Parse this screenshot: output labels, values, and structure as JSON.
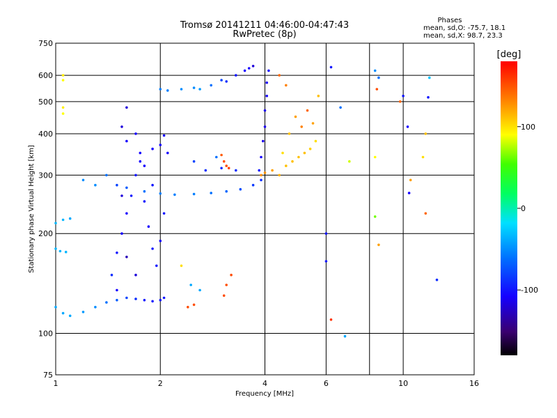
{
  "chart_data": {
    "type": "scatter",
    "title": "Tromsø 20141211 04:46:00-04:47:43",
    "subtitle": "RwPretec (8p)",
    "xlabel": "Frequency [MHz]",
    "ylabel": "Stationary phase Virtual Height [km]",
    "x_scale": "log",
    "y_scale": "log",
    "xlim": [
      1,
      16
    ],
    "ylim": [
      75,
      750
    ],
    "x_ticks": [
      1,
      2,
      4,
      6,
      10,
      16
    ],
    "x_tick_labels": [
      "1",
      "2",
      "4",
      "6",
      "10",
      "16"
    ],
    "x_grid": [
      2,
      4,
      6,
      8,
      10
    ],
    "y_ticks": [
      75,
      100,
      200,
      300,
      400,
      500,
      600,
      750
    ],
    "y_tick_labels": [
      "75",
      "100",
      "200",
      "300",
      "400",
      "500",
      "600",
      "750"
    ],
    "y_grid": [
      100,
      200,
      300,
      400,
      500,
      600
    ],
    "grid": true,
    "stats": {
      "heading": "Phases",
      "line1": "mean, sd,O: -75.7, 18.1",
      "line2": "mean, sd,X:  98.7, 23.3"
    },
    "colorbar": {
      "label": "[deg]",
      "range": [
        -180,
        180
      ],
      "ticks": [
        100,
        0,
        -100
      ],
      "tick_labels": [
        "100",
        "0",
        "-100"
      ],
      "colormap": "rainbow"
    },
    "series": [
      {
        "points": [
          [
            1.0,
            120,
            -40
          ],
          [
            1.05,
            115,
            -40
          ],
          [
            1.1,
            113,
            -40
          ],
          [
            1.2,
            116,
            -45
          ],
          [
            1.3,
            120,
            -50
          ],
          [
            1.4,
            124,
            -60
          ],
          [
            1.5,
            126,
            -70
          ],
          [
            1.6,
            128,
            -80
          ],
          [
            1.7,
            127,
            -90
          ],
          [
            1.8,
            126,
            -100
          ],
          [
            1.9,
            125,
            -100
          ],
          [
            2.0,
            126,
            -100
          ],
          [
            2.05,
            128,
            -100
          ],
          [
            1.0,
            180,
            -35
          ],
          [
            1.03,
            177,
            -35
          ],
          [
            1.07,
            176,
            -35
          ],
          [
            1.0,
            215,
            -35
          ],
          [
            1.05,
            220,
            -35
          ],
          [
            1.1,
            222,
            -40
          ],
          [
            1.45,
            150,
            -90
          ],
          [
            1.5,
            175,
            -100
          ],
          [
            1.55,
            200,
            -110
          ],
          [
            1.6,
            230,
            -110
          ],
          [
            1.65,
            260,
            -100
          ],
          [
            1.7,
            300,
            -100
          ],
          [
            1.75,
            350,
            -110
          ],
          [
            1.8,
            250,
            -100
          ],
          [
            1.85,
            210,
            -110
          ],
          [
            1.9,
            180,
            -100
          ],
          [
            1.95,
            160,
            -100
          ],
          [
            2.0,
            190,
            -110
          ],
          [
            2.05,
            230,
            -100
          ],
          [
            1.6,
            170,
            -130
          ],
          [
            1.7,
            150,
            -120
          ],
          [
            1.5,
            135,
            -110
          ],
          [
            1.55,
            260,
            -120
          ],
          [
            1.8,
            320,
            -110
          ],
          [
            1.9,
            280,
            -100
          ],
          [
            1.55,
            420,
            -120
          ],
          [
            1.6,
            480,
            -120
          ],
          [
            1.6,
            380,
            -110
          ],
          [
            1.7,
            400,
            -110
          ],
          [
            1.75,
            330,
            -110
          ],
          [
            1.9,
            360,
            -110
          ],
          [
            2.0,
            370,
            -110
          ],
          [
            2.1,
            350,
            -110
          ],
          [
            2.05,
            395,
            -110
          ],
          [
            1.5,
            280,
            -80
          ],
          [
            1.6,
            275,
            -70
          ],
          [
            1.8,
            268,
            -60
          ],
          [
            2.0,
            264,
            -55
          ],
          [
            2.2,
            262,
            -55
          ],
          [
            2.5,
            263,
            -55
          ],
          [
            2.8,
            265,
            -60
          ],
          [
            3.1,
            268,
            -65
          ],
          [
            3.4,
            272,
            -75
          ],
          [
            3.7,
            280,
            -85
          ],
          [
            3.9,
            290,
            -90
          ],
          [
            2.0,
            545,
            -55
          ],
          [
            2.1,
            540,
            -55
          ],
          [
            2.3,
            545,
            -50
          ],
          [
            2.5,
            550,
            -50
          ],
          [
            2.6,
            545,
            -45
          ],
          [
            2.8,
            560,
            -60
          ],
          [
            3.0,
            580,
            -80
          ],
          [
            3.1,
            575,
            -90
          ],
          [
            3.3,
            600,
            -100
          ],
          [
            3.5,
            620,
            -110
          ],
          [
            3.7,
            640,
            -120
          ],
          [
            3.6,
            630,
            -110
          ],
          [
            3.9,
            340,
            -110
          ],
          [
            3.95,
            380,
            -115
          ],
          [
            4.0,
            420,
            -115
          ],
          [
            4.0,
            470,
            -115
          ],
          [
            4.05,
            520,
            -110
          ],
          [
            4.05,
            570,
            -110
          ],
          [
            4.1,
            620,
            -105
          ],
          [
            3.85,
            310,
            -100
          ],
          [
            2.5,
            330,
            -80
          ],
          [
            2.7,
            310,
            -90
          ],
          [
            3.0,
            315,
            -90
          ],
          [
            3.3,
            310,
            -90
          ],
          [
            2.9,
            340,
            -60
          ],
          [
            3.05,
            330,
            150
          ],
          [
            3.1,
            320,
            150
          ],
          [
            3.15,
            315,
            155
          ],
          [
            3.0,
            345,
            145
          ],
          [
            3.9,
            300,
            125
          ],
          [
            4.0,
            305,
            125
          ],
          [
            4.2,
            310,
            120
          ],
          [
            4.4,
            300,
            115
          ],
          [
            4.6,
            320,
            110
          ],
          [
            4.8,
            330,
            110
          ],
          [
            5.0,
            340,
            110
          ],
          [
            5.2,
            350,
            110
          ],
          [
            5.4,
            360,
            105
          ],
          [
            5.6,
            380,
            100
          ],
          [
            4.5,
            350,
            100
          ],
          [
            4.7,
            400,
            110
          ],
          [
            4.9,
            450,
            120
          ],
          [
            5.1,
            420,
            130
          ],
          [
            5.3,
            470,
            140
          ],
          [
            5.5,
            430,
            120
          ],
          [
            5.7,
            520,
            110
          ],
          [
            4.4,
            600,
            140
          ],
          [
            4.6,
            560,
            130
          ],
          [
            1.4,
            300,
            -60
          ],
          [
            1.3,
            280,
            -50
          ],
          [
            1.2,
            290,
            -50
          ],
          [
            2.4,
            120,
            150
          ],
          [
            2.5,
            122,
            150
          ],
          [
            3.1,
            140,
            150
          ],
          [
            3.2,
            150,
            150
          ],
          [
            3.05,
            130,
            150
          ],
          [
            2.45,
            140,
            -40
          ],
          [
            2.6,
            135,
            -40
          ],
          [
            2.3,
            160,
            100
          ],
          [
            1.05,
            600,
            95
          ],
          [
            1.05,
            580,
            90
          ],
          [
            1.05,
            480,
            95
          ],
          [
            1.05,
            460,
            90
          ],
          [
            6.0,
            165,
            -100
          ],
          [
            6.2,
            635,
            -100
          ],
          [
            6.2,
            110,
            160
          ],
          [
            6.0,
            200,
            -100
          ],
          [
            6.8,
            98,
            -40
          ],
          [
            7.0,
            330,
            80
          ],
          [
            8.3,
            620,
            -50
          ],
          [
            8.5,
            590,
            -60
          ],
          [
            8.3,
            340,
            90
          ],
          [
            8.4,
            545,
            150
          ],
          [
            8.3,
            225,
            60
          ],
          [
            8.5,
            185,
            120
          ],
          [
            10.0,
            520,
            -100
          ],
          [
            10.3,
            420,
            -110
          ],
          [
            10.5,
            290,
            120
          ],
          [
            10.4,
            265,
            -110
          ],
          [
            11.4,
            340,
            100
          ],
          [
            11.6,
            400,
            110
          ],
          [
            11.9,
            590,
            -30
          ],
          [
            11.8,
            515,
            -100
          ],
          [
            11.6,
            230,
            140
          ],
          [
            12.5,
            145,
            -90
          ],
          [
            9.8,
            500,
            140
          ],
          [
            6.6,
            480,
            -60
          ]
        ]
      }
    ]
  }
}
